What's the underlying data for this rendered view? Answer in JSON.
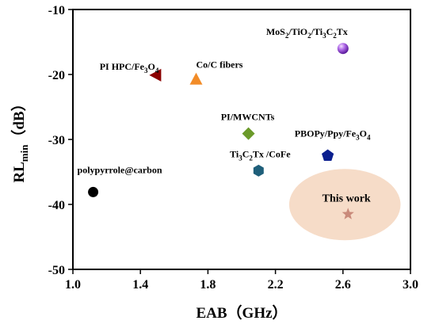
{
  "chart_data": {
    "type": "scatter",
    "title": "",
    "xlabel": "EAB（GHz）",
    "ylabel_main": "RL",
    "ylabel_sub": "min",
    "ylabel_unit": "（dB）",
    "xlim": [
      1.0,
      3.0
    ],
    "ylim": [
      -50,
      -10
    ],
    "x_ticks": [
      1.0,
      1.4,
      1.8,
      2.2,
      2.6,
      3.0
    ],
    "x_tick_labels": [
      "1.0",
      "1.4",
      "1.8",
      "2.2",
      "2.6",
      "3.0"
    ],
    "y_ticks": [
      -10,
      -20,
      -30,
      -40,
      -50
    ],
    "y_tick_labels": [
      "-10",
      "-20",
      "-30",
      "-40",
      "-50"
    ],
    "grid": false,
    "highlight": {
      "x": 2.63,
      "y": -41.5,
      "rx": 0.33,
      "ry": 5.0,
      "color": "#f6dcc8"
    },
    "points": [
      {
        "label": "polypyrrole@carbon",
        "x": 1.12,
        "y": -38.1,
        "marker": "circle",
        "color": "#000000",
        "parts": [
          {
            "t": "polypyrrole@carbon"
          }
        ]
      },
      {
        "label": "PI HPC/Fe3O4",
        "x": 1.49,
        "y": -20.1,
        "marker": "triangle-left",
        "color": "#8b0000",
        "parts": [
          {
            "t": "PI HPC/Fe"
          },
          {
            "t": "3",
            "sub": true
          },
          {
            "t": "O"
          },
          {
            "t": "4",
            "sub": true
          }
        ]
      },
      {
        "label": "Co/C fibers",
        "x": 1.73,
        "y": -20.7,
        "marker": "triangle-up",
        "color": "#f28c28",
        "parts": [
          {
            "t": "Co/C fibers"
          }
        ]
      },
      {
        "label": "PI/MWCNTs",
        "x": 2.04,
        "y": -29.1,
        "marker": "diamond",
        "color": "#6b9a2a",
        "parts": [
          {
            "t": "PI/MWCNTs"
          }
        ]
      },
      {
        "label": "Ti3C2Tx /CoFe",
        "x": 2.1,
        "y": -34.8,
        "marker": "hexagon",
        "color": "#1f5f7a",
        "parts": [
          {
            "t": "Ti"
          },
          {
            "t": "3",
            "sub": true
          },
          {
            "t": "C"
          },
          {
            "t": "2",
            "sub": true
          },
          {
            "t": "Tx /CoFe"
          }
        ]
      },
      {
        "label": "PBOPy/Ppy/Fe3O4",
        "x": 2.51,
        "y": -32.5,
        "marker": "pentagon",
        "color": "#0b1f8f",
        "parts": [
          {
            "t": "PBOPy/Ppy/Fe"
          },
          {
            "t": "3",
            "sub": true
          },
          {
            "t": "O"
          },
          {
            "t": "4",
            "sub": true
          }
        ]
      },
      {
        "label": "MoS2/TiO2/Ti3C2Tx",
        "x": 2.6,
        "y": -16.0,
        "marker": "sphere",
        "color": "#9b3fd6",
        "parts": [
          {
            "t": "MoS"
          },
          {
            "t": "2",
            "sub": true
          },
          {
            "t": "/TiO"
          },
          {
            "t": "2",
            "sub": true
          },
          {
            "t": "/Ti"
          },
          {
            "t": "3",
            "sub": true
          },
          {
            "t": "C"
          },
          {
            "t": "2",
            "sub": true
          },
          {
            "t": "Tx"
          }
        ]
      },
      {
        "label": "This work",
        "x": 2.63,
        "y": -41.5,
        "marker": "star",
        "color": "#c98a7a",
        "parts": [
          {
            "t": "This work"
          }
        ]
      }
    ]
  }
}
